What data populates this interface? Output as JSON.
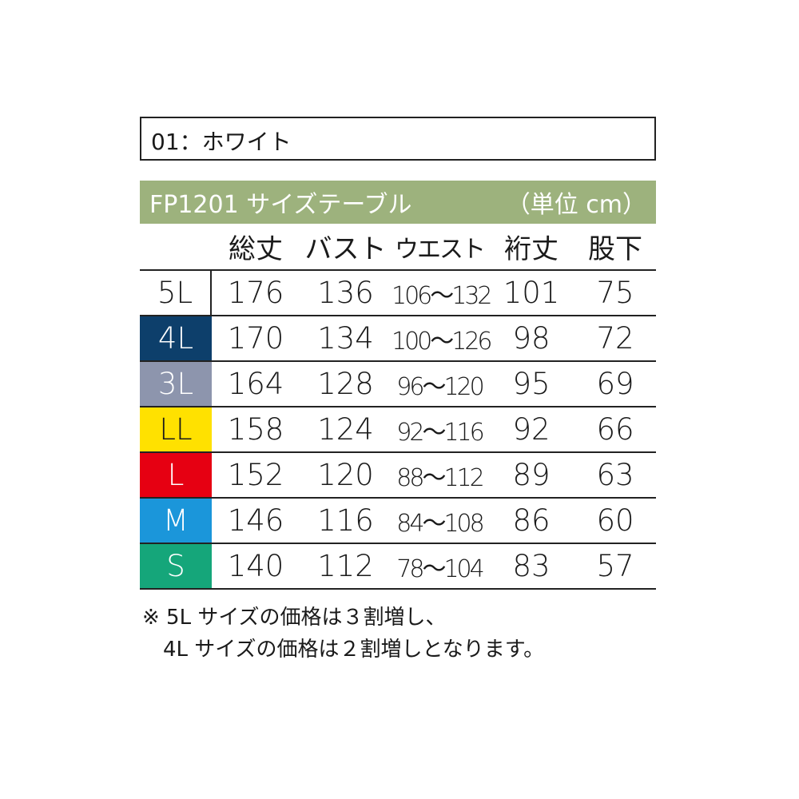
{
  "color_label": "01：ホワイト",
  "band": {
    "title": "FP1201  サイズテーブル",
    "unit": "（単位 cm）",
    "color": "#9db27d"
  },
  "columns": [
    "",
    "総丈",
    "バスト",
    "ウエスト",
    "裄丈",
    "股下"
  ],
  "rows": [
    {
      "size": "5L",
      "color": "#ffffff",
      "text_color": "#1a1a1a",
      "values": [
        "176",
        "136",
        "106～132",
        "101",
        "75"
      ]
    },
    {
      "size": "4L",
      "color": "#0d3f6b",
      "text_color": "#ffffff",
      "values": [
        "170",
        "134",
        "100～126",
        "98",
        "72"
      ]
    },
    {
      "size": "3L",
      "color": "#8d95ad",
      "text_color": "#ffffff",
      "values": [
        "164",
        "128",
        "96～120",
        "95",
        "69"
      ]
    },
    {
      "size": "LL",
      "color": "#ffe100",
      "text_color": "#1a1a1a",
      "values": [
        "158",
        "124",
        "92～116",
        "92",
        "66"
      ]
    },
    {
      "size": "L",
      "color": "#e60012",
      "text_color": "#ffffff",
      "values": [
        "152",
        "120",
        "88～112",
        "89",
        "63"
      ]
    },
    {
      "size": "M",
      "color": "#1b96da",
      "text_color": "#ffffff",
      "values": [
        "146",
        "116",
        "84～108",
        "86",
        "60"
      ]
    },
    {
      "size": "S",
      "color": "#15a67a",
      "text_color": "#ffffff",
      "values": [
        "140",
        "112",
        "78～104",
        "83",
        "57"
      ]
    }
  ],
  "notes": [
    "※ 5L サイズの価格は３割増し、",
    "　4L サイズの価格は２割増しとなります。"
  ]
}
